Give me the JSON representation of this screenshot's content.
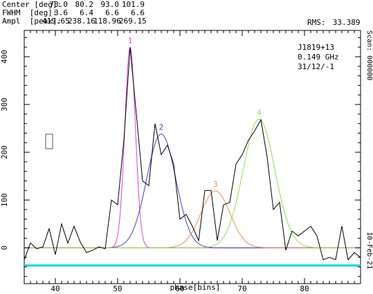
{
  "fit_table": {
    "rows": [
      {
        "label": "Center [deg]:",
        "values": [
          "73.0",
          "80.2",
          "93.0",
          "101.9"
        ]
      },
      {
        "label": "FWHM  [deg]:",
        "values": [
          "3.6",
          "6.4",
          "6.6",
          "6.6"
        ]
      },
      {
        "label": "Ampl  [peak]:",
        "values": [
          "419.65",
          "238.16",
          "118.96",
          "269.15"
        ]
      }
    ]
  },
  "rms": {
    "label": "RMS:",
    "value": "33.389"
  },
  "source_info": {
    "name": "J1819+13",
    "freq": "0.149 GHz",
    "date": "31/12/-1"
  },
  "right_labels": {
    "scan": "Scan: 000000",
    "date": "10-Feb-21"
  },
  "colors": {
    "data": "#000000",
    "component_1": "#e040e0",
    "component_2": "#4040d0",
    "component_3": "#f09050",
    "component_4": "#90e050",
    "baseline": "#c8c870",
    "offpulse_band": "#00d8e8",
    "marker_box": "#555555"
  },
  "chart_data": {
    "type": "line",
    "xlabel": "phase[bins]",
    "ylabel": "",
    "xlim": [
      35,
      89
    ],
    "ylim": [
      -75,
      455
    ],
    "xticks": [
      40,
      50,
      60,
      70,
      80
    ],
    "yticks": [
      0,
      100,
      200,
      300,
      400
    ],
    "baseline_y": 0,
    "offpulse_level": -37,
    "profile": {
      "x": [
        35,
        36,
        37,
        38,
        39,
        40,
        41,
        42,
        43,
        44,
        45,
        46,
        47,
        48,
        49,
        50,
        51,
        52,
        53,
        54,
        55,
        56,
        57,
        58,
        59,
        60,
        61,
        62,
        63,
        64,
        65,
        66,
        67,
        68,
        69,
        70,
        71,
        72,
        73,
        74,
        75,
        76,
        77,
        78,
        79,
        80,
        81,
        82,
        83,
        84,
        85,
        86,
        87,
        88,
        89
      ],
      "y": [
        -25,
        10,
        -2,
        2,
        40,
        -14,
        50,
        10,
        45,
        12,
        -10,
        -5,
        2,
        -2,
        100,
        90,
        225,
        420,
        280,
        140,
        130,
        260,
        195,
        215,
        175,
        60,
        70,
        45,
        15,
        120,
        120,
        15,
        90,
        95,
        175,
        195,
        225,
        245,
        268,
        190,
        80,
        95,
        -5,
        35,
        25,
        35,
        45,
        25,
        -25,
        -20,
        -25,
        45,
        -25,
        -10,
        -20
      ]
    },
    "components": [
      {
        "label": "1",
        "center": 52.0,
        "fwhm": 2.0,
        "amplitude": 419.65
      },
      {
        "label": "2",
        "center": 57.0,
        "fwhm": 5.5,
        "amplitude": 238.16
      },
      {
        "label": "3",
        "center": 65.7,
        "fwhm": 5.5,
        "amplitude": 118.96
      },
      {
        "label": "4",
        "center": 72.7,
        "fwhm": 6.0,
        "amplitude": 269.15
      }
    ]
  }
}
